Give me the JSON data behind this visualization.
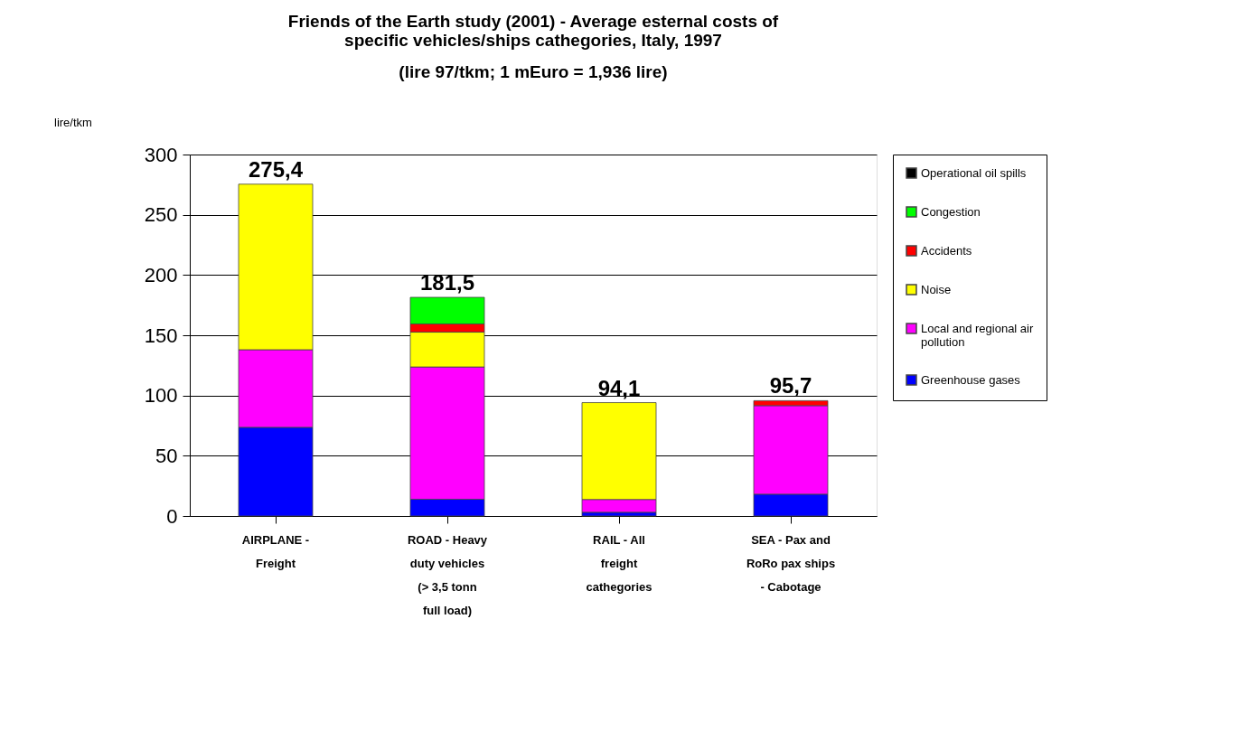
{
  "chart_data": {
    "type": "bar",
    "stacked": true,
    "title": "Friends of the Earth study (2001) - Average esternal costs of specific vehicles/ships cathegories, Italy,  1997",
    "subtitle": "(lire 97/tkm; 1 mEuro = 1,936 lire)",
    "ylabel": "lire/tkm",
    "categories": [
      "AIRPLANE - Freight",
      "ROAD - Heavy duty vehicles (> 3,5 tonn full load)",
      "RAIL - All freight cathegories",
      "SEA - Pax and RoRo pax ships - Cabotage"
    ],
    "series": [
      {
        "name": "Greenhouse gases",
        "color": "#0000ff",
        "values": [
          73.6,
          13.9,
          3.1,
          18.1
        ]
      },
      {
        "name": "Local and regional air pollution",
        "color": "#ff00ff",
        "values": [
          64.4,
          109.8,
          10.6,
          73.5
        ]
      },
      {
        "name": "Noise",
        "color": "#ffff00",
        "values": [
          137.4,
          28.9,
          80.4,
          null
        ]
      },
      {
        "name": "Accidents",
        "color": "#ff0000",
        "values": [
          null,
          6.8,
          null,
          4.1
        ]
      },
      {
        "name": "Congestion",
        "color": "#00ff00",
        "values": [
          null,
          22.1,
          null,
          null
        ]
      },
      {
        "name": "Operational oil spills",
        "color": "#000000",
        "values": [
          null,
          null,
          null,
          null
        ]
      }
    ],
    "totals": [
      "275,4",
      "181,5",
      "94,1",
      "95,7"
    ],
    "ylim": [
      0,
      300
    ],
    "yticks": [
      0,
      50,
      100,
      150,
      200,
      250,
      300
    ],
    "grid": "y",
    "legend": "right"
  }
}
